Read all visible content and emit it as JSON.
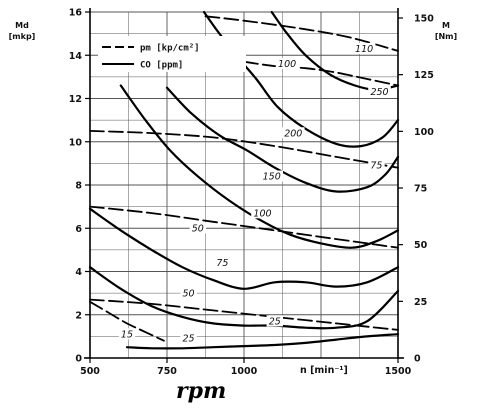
{
  "chart_data": {
    "type": "line",
    "title": "",
    "xlabel": "n [min⁻¹]",
    "ylabel_left": "Md [mkp]",
    "ylabel_right": "M [Nm]",
    "annotation": "rpm",
    "x_ticks": [
      "500",
      "750",
      "1000",
      "1500"
    ],
    "y_ticks_left": [
      "0",
      "2",
      "4",
      "6",
      "8",
      "10",
      "12",
      "14",
      "16"
    ],
    "y_ticks_right": [
      "0",
      "25",
      "50",
      "75",
      "100",
      "125",
      "150"
    ],
    "xlim": [
      500,
      1500
    ],
    "ylim_left": [
      0,
      16
    ],
    "grid": true,
    "legend": {
      "placement": "top-left",
      "entries": [
        {
          "style": "dashed",
          "label": "pm  [kp/cm²]"
        },
        {
          "style": "solid",
          "label": "CO  [ppm]"
        }
      ]
    },
    "series": [
      {
        "group": "pm",
        "style": "dashed",
        "name": "110",
        "points": [
          [
            875,
            15.8
          ],
          [
            1000,
            15.6
          ],
          [
            1200,
            15.2
          ],
          [
            1350,
            14.8
          ],
          [
            1500,
            14.2
          ]
        ]
      },
      {
        "group": "pm",
        "style": "dashed",
        "name": "100",
        "points": [
          [
            1000,
            13.7
          ],
          [
            1100,
            13.5
          ],
          [
            1200,
            13.4
          ],
          [
            1300,
            13.2
          ],
          [
            1400,
            12.9
          ],
          [
            1500,
            12.6
          ]
        ]
      },
      {
        "group": "pm",
        "style": "dashed",
        "name": "75",
        "points": [
          [
            500,
            10.5
          ],
          [
            700,
            10.4
          ],
          [
            900,
            10.2
          ],
          [
            1100,
            9.8
          ],
          [
            1300,
            9.3
          ],
          [
            1500,
            8.8
          ]
        ]
      },
      {
        "group": "pm",
        "style": "dashed",
        "name": "50",
        "points": [
          [
            500,
            7.0
          ],
          [
            700,
            6.7
          ],
          [
            900,
            6.3
          ],
          [
            1100,
            5.9
          ],
          [
            1300,
            5.5
          ],
          [
            1500,
            5.1
          ]
        ]
      },
      {
        "group": "pm",
        "style": "dashed",
        "name": "25",
        "points": [
          [
            500,
            2.7
          ],
          [
            700,
            2.5
          ],
          [
            900,
            2.2
          ],
          [
            1100,
            1.9
          ],
          [
            1300,
            1.6
          ],
          [
            1500,
            1.3
          ]
        ]
      },
      {
        "group": "CO",
        "style": "solid",
        "name": "250",
        "points": [
          [
            1090,
            16
          ],
          [
            1140,
            15.0
          ],
          [
            1200,
            14.0
          ],
          [
            1280,
            13.1
          ],
          [
            1360,
            12.6
          ],
          [
            1430,
            12.4
          ],
          [
            1500,
            12.6
          ]
        ]
      },
      {
        "group": "CO",
        "style": "solid",
        "name": "200",
        "points": [
          [
            870,
            16
          ],
          [
            920,
            15.0
          ],
          [
            980,
            13.9
          ],
          [
            1040,
            12.9
          ],
          [
            1110,
            11.6
          ],
          [
            1200,
            10.6
          ],
          [
            1300,
            9.9
          ],
          [
            1380,
            9.8
          ],
          [
            1450,
            10.2
          ],
          [
            1500,
            11.0
          ]
        ]
      },
      {
        "group": "CO",
        "style": "solid",
        "name": "150",
        "points": [
          [
            750,
            12.5
          ],
          [
            830,
            11.3
          ],
          [
            920,
            10.3
          ],
          [
            1010,
            9.6
          ],
          [
            1100,
            8.8
          ],
          [
            1200,
            8.1
          ],
          [
            1300,
            7.7
          ],
          [
            1400,
            7.9
          ],
          [
            1460,
            8.5
          ],
          [
            1500,
            9.3
          ]
        ]
      },
      {
        "group": "CO",
        "style": "solid",
        "name": "100",
        "points": [
          [
            600,
            12.6
          ],
          [
            680,
            11.0
          ],
          [
            760,
            9.6
          ],
          [
            850,
            8.4
          ],
          [
            950,
            7.3
          ],
          [
            1050,
            6.4
          ],
          [
            1150,
            5.7
          ],
          [
            1250,
            5.3
          ],
          [
            1350,
            5.1
          ],
          [
            1430,
            5.4
          ],
          [
            1500,
            5.9
          ]
        ]
      },
      {
        "group": "CO",
        "style": "solid",
        "name": "75",
        "points": [
          [
            500,
            6.9
          ],
          [
            600,
            5.9
          ],
          [
            700,
            5.0
          ],
          [
            800,
            4.2
          ],
          [
            900,
            3.6
          ],
          [
            1000,
            3.2
          ],
          [
            1100,
            3.5
          ],
          [
            1200,
            3.5
          ],
          [
            1300,
            3.3
          ],
          [
            1400,
            3.5
          ],
          [
            1500,
            4.2
          ]
        ]
      },
      {
        "group": "CO",
        "style": "solid",
        "name": "50",
        "points": [
          [
            500,
            4.2
          ],
          [
            600,
            3.2
          ],
          [
            700,
            2.4
          ],
          [
            800,
            1.9
          ],
          [
            900,
            1.6
          ],
          [
            1000,
            1.5
          ],
          [
            1100,
            1.5
          ],
          [
            1200,
            1.4
          ],
          [
            1300,
            1.4
          ],
          [
            1400,
            1.7
          ],
          [
            1500,
            3.1
          ]
        ]
      },
      {
        "group": "CO",
        "style": "solid",
        "name": "25",
        "points": [
          [
            620,
            0.5
          ],
          [
            700,
            0.45
          ],
          [
            800,
            0.45
          ],
          [
            900,
            0.5
          ],
          [
            1000,
            0.55
          ],
          [
            1100,
            0.6
          ],
          [
            1200,
            0.7
          ],
          [
            1300,
            0.85
          ],
          [
            1400,
            1.0
          ],
          [
            1500,
            1.1
          ]
        ]
      },
      {
        "group": "CO",
        "style": "dashed",
        "name": "15",
        "points": [
          [
            500,
            2.6
          ],
          [
            560,
            2.1
          ],
          [
            620,
            1.6
          ],
          [
            680,
            1.2
          ],
          [
            740,
            0.8
          ]
        ]
      }
    ],
    "curve_labels": [
      {
        "text": "110",
        "x": 1390,
        "y": 14.2
      },
      {
        "text": "100",
        "x": 1140,
        "y": 13.5
      },
      {
        "text": "250",
        "x": 1440,
        "y": 12.2
      },
      {
        "text": "200",
        "x": 1160,
        "y": 10.3
      },
      {
        "text": "75",
        "x": 1430,
        "y": 8.8
      },
      {
        "text": "150",
        "x": 1090,
        "y": 8.3
      },
      {
        "text": "100",
        "x": 1060,
        "y": 6.6
      },
      {
        "text": "50",
        "x": 850,
        "y": 5.9
      },
      {
        "text": "75",
        "x": 930,
        "y": 4.3
      },
      {
        "text": "50",
        "x": 820,
        "y": 2.9
      },
      {
        "text": "25",
        "x": 1100,
        "y": 1.6
      },
      {
        "text": "25",
        "x": 820,
        "y": 0.8
      },
      {
        "text": "15",
        "x": 620,
        "y": 1.0
      }
    ]
  }
}
